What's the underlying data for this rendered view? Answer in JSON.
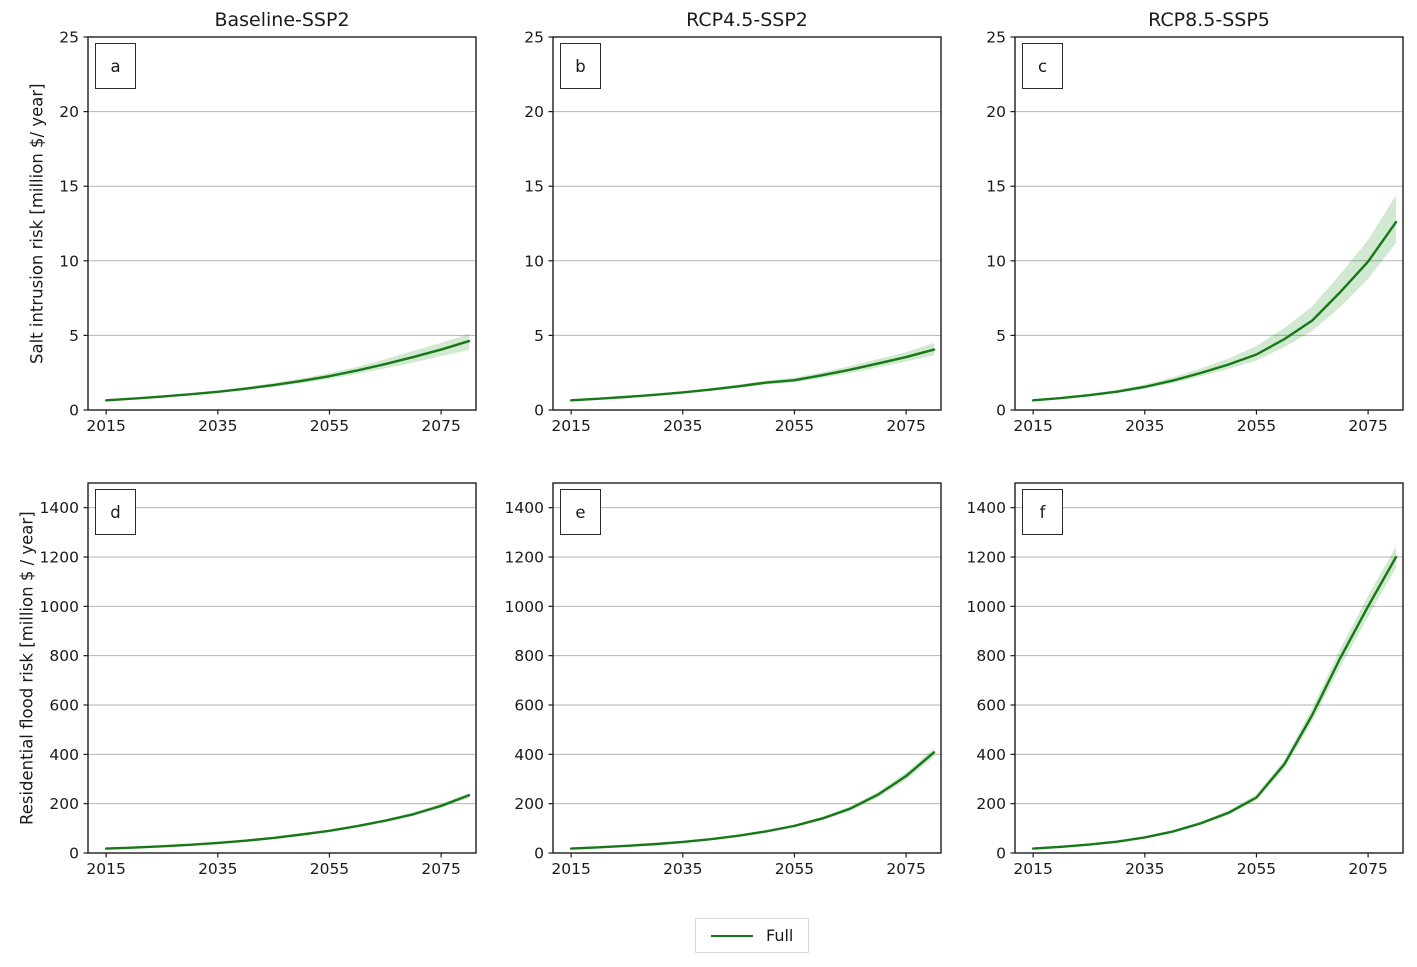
{
  "colors": {
    "line": "#167816",
    "band": "#008000",
    "band_opacity": 0.18,
    "grid": "#b5b5b5",
    "spine": "#1d1d1d",
    "text": "#1a1a1a",
    "legend_border": "#d8d8d8"
  },
  "legend": {
    "label": "Full",
    "position": "bottom center"
  },
  "chart_data": [
    {
      "panel_label": "a",
      "type": "line",
      "title": "Baseline-SSP2",
      "ylabel": "Salt intrusion risk [million $/ year]",
      "row": 0,
      "col": 0,
      "xlim": [
        2011.75,
        2081.25
      ],
      "ylim": [
        0,
        25
      ],
      "xticks": [
        2015,
        2035,
        2055,
        2075
      ],
      "yticks": [
        0,
        5,
        10,
        15,
        20,
        25
      ],
      "grid": "horizontal",
      "x": [
        2015,
        2020,
        2025,
        2030,
        2035,
        2040,
        2045,
        2050,
        2055,
        2060,
        2065,
        2070,
        2075,
        2080
      ],
      "series": [
        {
          "name": "Full",
          "values": [
            0.65,
            0.77,
            0.9,
            1.05,
            1.22,
            1.43,
            1.67,
            1.95,
            2.27,
            2.65,
            3.08,
            3.55,
            4.05,
            4.62
          ],
          "band_lower": [
            0.61,
            0.72,
            0.85,
            0.98,
            1.14,
            1.33,
            1.55,
            1.8,
            2.09,
            2.42,
            2.79,
            3.18,
            3.6,
            4.02
          ],
          "band_upper": [
            0.69,
            0.82,
            0.96,
            1.12,
            1.31,
            1.54,
            1.81,
            2.12,
            2.47,
            2.9,
            3.4,
            3.96,
            4.5,
            5.1
          ]
        }
      ]
    },
    {
      "panel_label": "b",
      "type": "line",
      "title": "RCP4.5-SSP2",
      "ylabel": "",
      "row": 0,
      "col": 1,
      "xlim": [
        2011.75,
        2081.25
      ],
      "ylim": [
        0,
        25
      ],
      "xticks": [
        2015,
        2035,
        2055,
        2075
      ],
      "yticks": [
        0,
        5,
        10,
        15,
        20,
        25
      ],
      "grid": "horizontal",
      "x": [
        2015,
        2020,
        2025,
        2030,
        2035,
        2040,
        2045,
        2050,
        2055,
        2060,
        2065,
        2070,
        2075,
        2080
      ],
      "series": [
        {
          "name": "Full",
          "values": [
            0.65,
            0.76,
            0.88,
            1.02,
            1.18,
            1.37,
            1.59,
            1.84,
            2.0,
            2.33,
            2.7,
            3.12,
            3.55,
            4.05
          ],
          "band_lower": [
            0.61,
            0.71,
            0.83,
            0.96,
            1.11,
            1.28,
            1.48,
            1.71,
            1.86,
            2.15,
            2.48,
            2.85,
            3.25,
            3.68
          ],
          "band_upper": [
            0.69,
            0.81,
            0.94,
            1.09,
            1.26,
            1.47,
            1.71,
            1.98,
            2.17,
            2.53,
            2.95,
            3.42,
            3.88,
            4.5
          ]
        }
      ]
    },
    {
      "panel_label": "c",
      "type": "line",
      "title": "RCP8.5-SSP5",
      "ylabel": "",
      "row": 0,
      "col": 2,
      "xlim": [
        2011.75,
        2081.25
      ],
      "ylim": [
        0,
        25
      ],
      "xticks": [
        2015,
        2035,
        2055,
        2075
      ],
      "yticks": [
        0,
        5,
        10,
        15,
        20,
        25
      ],
      "grid": "horizontal",
      "x": [
        2015,
        2020,
        2025,
        2030,
        2035,
        2040,
        2045,
        2050,
        2055,
        2060,
        2065,
        2070,
        2075,
        2080
      ],
      "series": [
        {
          "name": "Full",
          "values": [
            0.65,
            0.8,
            0.99,
            1.23,
            1.55,
            1.97,
            2.48,
            3.05,
            3.72,
            4.75,
            6.0,
            7.9,
            9.95,
            12.6
          ],
          "band_lower": [
            0.6,
            0.74,
            0.92,
            1.14,
            1.43,
            1.8,
            2.25,
            2.76,
            3.32,
            4.22,
            5.3,
            6.9,
            8.8,
            11.2
          ],
          "band_upper": [
            0.71,
            0.87,
            1.08,
            1.35,
            1.71,
            2.19,
            2.78,
            3.45,
            4.3,
            5.5,
            6.95,
            9.1,
            11.4,
            14.4
          ]
        }
      ]
    },
    {
      "panel_label": "d",
      "type": "line",
      "title": "",
      "ylabel": "Residential flood risk [million $ / year]",
      "row": 1,
      "col": 0,
      "xlim": [
        2011.75,
        2081.25
      ],
      "ylim": [
        0,
        1500
      ],
      "xticks": [
        2015,
        2035,
        2055,
        2075
      ],
      "yticks": [
        0,
        200,
        400,
        600,
        800,
        1000,
        1200,
        1400
      ],
      "grid": "horizontal",
      "x": [
        2015,
        2020,
        2025,
        2030,
        2035,
        2040,
        2045,
        2050,
        2055,
        2060,
        2065,
        2070,
        2075,
        2080
      ],
      "series": [
        {
          "name": "Full",
          "values": [
            18,
            22,
            27,
            33,
            41,
            50,
            61,
            75,
            90,
            109,
            131,
            157,
            191,
            234
          ],
          "band_lower": [
            17,
            21,
            26,
            32,
            39,
            48,
            59,
            72,
            87,
            105,
            126,
            151,
            183,
            224
          ],
          "band_upper": [
            19,
            23,
            28,
            35,
            43,
            53,
            64,
            78,
            94,
            114,
            137,
            164,
            200,
            243
          ]
        }
      ]
    },
    {
      "panel_label": "e",
      "type": "line",
      "title": "",
      "ylabel": "",
      "row": 1,
      "col": 1,
      "xlim": [
        2011.75,
        2081.25
      ],
      "ylim": [
        0,
        1500
      ],
      "xticks": [
        2015,
        2035,
        2055,
        2075
      ],
      "yticks": [
        0,
        200,
        400,
        600,
        800,
        1000,
        1200,
        1400
      ],
      "grid": "horizontal",
      "x": [
        2015,
        2020,
        2025,
        2030,
        2035,
        2040,
        2045,
        2050,
        2055,
        2060,
        2065,
        2070,
        2075,
        2080
      ],
      "series": [
        {
          "name": "Full",
          "values": [
            18,
            23,
            29,
            36,
            45,
            56,
            70,
            88,
            110,
            140,
            180,
            237,
            312,
            408
          ],
          "band_lower": [
            17,
            22,
            28,
            35,
            43,
            54,
            67,
            84,
            105,
            133,
            171,
            226,
            296,
            390
          ],
          "band_upper": [
            19,
            24,
            31,
            38,
            47,
            59,
            73,
            92,
            116,
            147,
            189,
            248,
            327,
            424
          ]
        }
      ]
    },
    {
      "panel_label": "f",
      "type": "line",
      "title": "",
      "ylabel": "",
      "row": 1,
      "col": 2,
      "xlim": [
        2011.75,
        2081.25
      ],
      "ylim": [
        0,
        1500
      ],
      "xticks": [
        2015,
        2035,
        2055,
        2075
      ],
      "yticks": [
        0,
        200,
        400,
        600,
        800,
        1000,
        1200,
        1400
      ],
      "grid": "horizontal",
      "x": [
        2015,
        2020,
        2025,
        2030,
        2035,
        2040,
        2045,
        2050,
        2055,
        2060,
        2065,
        2070,
        2075,
        2080
      ],
      "series": [
        {
          "name": "Full",
          "values": [
            18,
            25,
            34,
            46,
            63,
            87,
            120,
            163,
            225,
            360,
            560,
            790,
            1000,
            1200
          ],
          "band_lower": [
            17,
            24,
            32,
            44,
            60,
            83,
            114,
            155,
            214,
            343,
            534,
            754,
            958,
            1157
          ],
          "band_upper": [
            19,
            26,
            36,
            49,
            66,
            92,
            127,
            172,
            237,
            378,
            588,
            827,
            1043,
            1243
          ]
        }
      ]
    }
  ]
}
